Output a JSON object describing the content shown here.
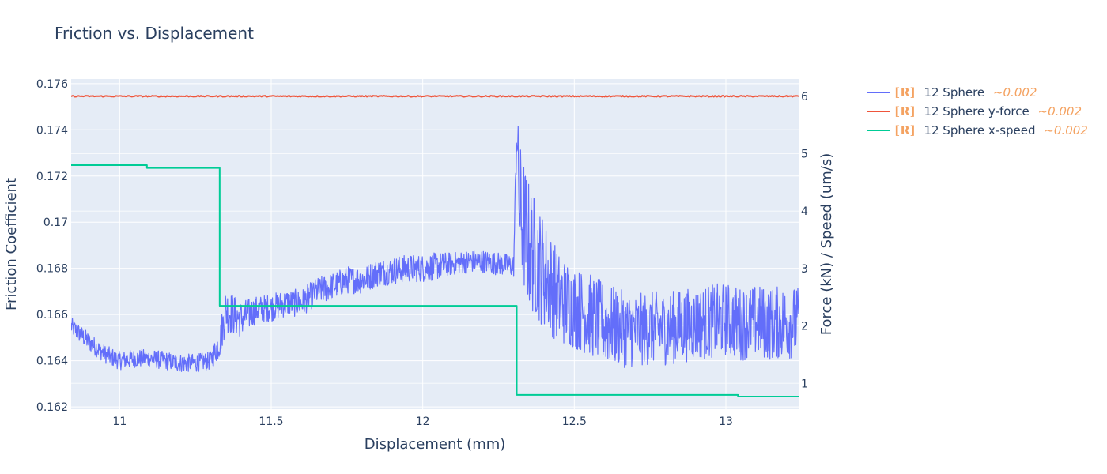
{
  "chart_data": {
    "type": "line",
    "title": "Friction vs. Displacement",
    "xlabel": "Displacement (mm)",
    "ylabel": "Friction Coefficient",
    "y2label": "Force (kN) / Speed (um/s)",
    "xlim": [
      10.84,
      13.24
    ],
    "ylim": [
      0.1619,
      0.1762
    ],
    "y2lim": [
      0.55,
      6.3
    ],
    "x_ticks": [
      11,
      11.5,
      12,
      12.5,
      13
    ],
    "x_tick_labels": [
      "11",
      "11.5",
      "12",
      "12.5",
      "13"
    ],
    "y_ticks": [
      0.162,
      0.164,
      0.166,
      0.168,
      0.17,
      0.172,
      0.174,
      0.176
    ],
    "y_tick_labels": [
      "0.162",
      "0.164",
      "0.166",
      "0.168",
      "0.17",
      "0.172",
      "0.174",
      "0.176"
    ],
    "y2_ticks": [
      1,
      2,
      3,
      4,
      5,
      6
    ],
    "y2_tick_labels": [
      "1",
      "2",
      "3",
      "4",
      "5",
      "6"
    ],
    "grid": true,
    "legend_position": "right-top",
    "series": [
      {
        "name": "12 Sphere",
        "axis": "y",
        "color": "#636efa",
        "x": [
          10.84,
          10.9,
          10.95,
          11.0,
          11.05,
          11.1,
          11.15,
          11.2,
          11.25,
          11.3,
          11.33,
          11.35,
          11.4,
          11.45,
          11.5,
          11.55,
          11.6,
          11.65,
          11.7,
          11.75,
          11.8,
          11.85,
          11.9,
          11.95,
          12.0,
          12.05,
          12.1,
          12.15,
          12.2,
          12.25,
          12.3,
          12.31,
          12.32,
          12.33,
          12.35,
          12.4,
          12.45,
          12.5,
          12.55,
          12.6,
          12.65,
          12.7,
          12.75,
          12.8,
          12.85,
          12.9,
          12.95,
          13.0,
          13.05,
          13.1,
          13.15,
          13.2,
          13.24
        ],
        "y": [
          0.1655,
          0.1648,
          0.1643,
          0.164,
          0.1641,
          0.1641,
          0.164,
          0.1639,
          0.1639,
          0.164,
          0.1648,
          0.1662,
          0.1658,
          0.1662,
          0.1663,
          0.1665,
          0.1665,
          0.167,
          0.1672,
          0.1675,
          0.1675,
          0.1678,
          0.1679,
          0.168,
          0.168,
          0.1681,
          0.1682,
          0.1683,
          0.1683,
          0.1682,
          0.1681,
          0.174,
          0.1705,
          0.17,
          0.169,
          0.1678,
          0.1667,
          0.1663,
          0.166,
          0.1656,
          0.1654,
          0.1653,
          0.1654,
          0.1654,
          0.1655,
          0.1656,
          0.1657,
          0.1658,
          0.1656,
          0.1657,
          0.1656,
          0.1657,
          0.1656
        ],
        "noise": [
          0.0004,
          0.0004,
          0.0004,
          0.0004,
          0.0004,
          0.0004,
          0.0004,
          0.0004,
          0.0004,
          0.0004,
          0.0007,
          0.001,
          0.0008,
          0.0006,
          0.0006,
          0.0006,
          0.0006,
          0.0006,
          0.0006,
          0.0006,
          0.0006,
          0.0006,
          0.0006,
          0.0006,
          0.0006,
          0.0006,
          0.0005,
          0.0005,
          0.0005,
          0.0005,
          0.0005,
          0.001,
          0.003,
          0.003,
          0.0028,
          0.0024,
          0.002,
          0.0018,
          0.0018,
          0.0018,
          0.0017,
          0.0016,
          0.0016,
          0.0016,
          0.0016,
          0.0016,
          0.0016,
          0.0016,
          0.0016,
          0.0016,
          0.0016,
          0.0016,
          0.0016
        ]
      },
      {
        "name": "12 Sphere y-force",
        "axis": "y2",
        "color": "#ef553b",
        "x": [
          10.84,
          13.24
        ],
        "y": [
          6.0,
          6.0
        ]
      },
      {
        "name": "12 Sphere x-speed",
        "axis": "y2",
        "color": "#00cc96",
        "x": [
          10.84,
          11.09,
          11.09,
          11.33,
          11.33,
          12.31,
          12.31,
          13.04,
          13.04,
          13.24
        ],
        "y": [
          4.8,
          4.8,
          4.75,
          4.75,
          2.35,
          2.35,
          0.8,
          0.8,
          0.77,
          0.77
        ]
      }
    ],
    "legend": [
      {
        "badge": "[R]",
        "label": "12 Sphere",
        "value": "~0.002",
        "color": "#636efa"
      },
      {
        "badge": "[R]",
        "label": "12 Sphere y-force",
        "value": "~0.002",
        "color": "#ef553b"
      },
      {
        "badge": "[R]",
        "label": "12 Sphere x-speed",
        "value": "~0.002",
        "color": "#00cc96"
      }
    ]
  },
  "colors": {
    "plot_bg": "#e5ecf6",
    "grid": "#ffffff",
    "text": "#2a3f5f",
    "badge": "#f4a261",
    "value": "#f4a261"
  }
}
